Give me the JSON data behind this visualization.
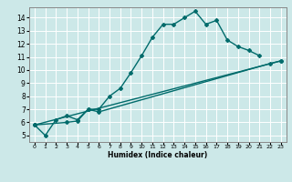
{
  "xlabel": "Humidex (Indice chaleur)",
  "bg_color": "#cce8e8",
  "grid_color": "#ffffff",
  "line_color": "#006b6b",
  "marker": "D",
  "marker_size": 2.0,
  "line_width": 1.0,
  "xlim": [
    -0.5,
    23.5
  ],
  "ylim": [
    4.5,
    14.8
  ],
  "xticks": [
    0,
    1,
    2,
    3,
    4,
    5,
    6,
    7,
    8,
    9,
    10,
    11,
    12,
    13,
    14,
    15,
    16,
    17,
    18,
    19,
    20,
    21,
    22,
    23
  ],
  "yticks": [
    5,
    6,
    7,
    8,
    9,
    10,
    11,
    12,
    13,
    14
  ],
  "line1_x": [
    0,
    1,
    2,
    3,
    4,
    5,
    6,
    7,
    8,
    9,
    10,
    11,
    12,
    13,
    14,
    15,
    16,
    17,
    18,
    19,
    20,
    21
  ],
  "line1_y": [
    5.8,
    5.0,
    6.2,
    6.5,
    6.2,
    7.0,
    7.0,
    8.0,
    8.6,
    9.8,
    11.1,
    12.5,
    13.5,
    13.5,
    14.0,
    14.5,
    13.5,
    13.8,
    12.3,
    11.8,
    11.5,
    11.1
  ],
  "line2_x": [
    0,
    23
  ],
  "line2_y": [
    5.8,
    10.7
  ],
  "line3_x": [
    0,
    3,
    4,
    5,
    6,
    22,
    23
  ],
  "line3_y": [
    5.8,
    6.0,
    6.1,
    7.0,
    6.8,
    10.5,
    10.7
  ]
}
